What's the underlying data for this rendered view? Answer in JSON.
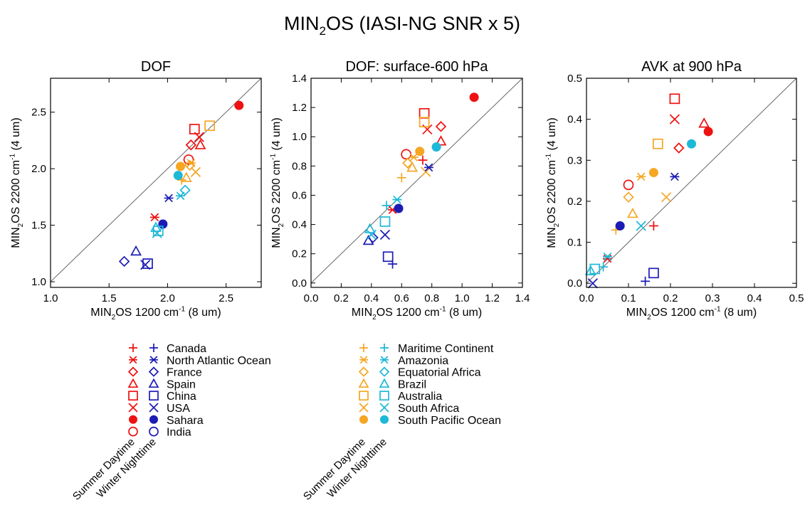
{
  "figure": {
    "title_prefix": "MIN",
    "title_sub": "2",
    "title_suffix": "OS (IASI-NG SNR x 5)"
  },
  "colors": {
    "summer_north": "#ee1111",
    "winter_north": "#1c1cb5",
    "summer_south": "#f5a623",
    "winter_south": "#1eb8d8",
    "diagonal": "#666666"
  },
  "legend": {
    "group_labels": [
      "Summer Daytime",
      "Winter Nighttime"
    ],
    "north": [
      {
        "name": "Canada",
        "symbol": "plus"
      },
      {
        "name": "North Atlantic Ocean",
        "symbol": "asterisk"
      },
      {
        "name": "France",
        "symbol": "diamond"
      },
      {
        "name": "Spain",
        "symbol": "triangle"
      },
      {
        "name": "China",
        "symbol": "square"
      },
      {
        "name": "USA",
        "symbol": "x"
      },
      {
        "name": "Sahara",
        "symbol": "filled-circle"
      },
      {
        "name": "India",
        "symbol": "circle"
      }
    ],
    "south": [
      {
        "name": "Maritime Continent",
        "symbol": "plus"
      },
      {
        "name": "Amazonia",
        "symbol": "asterisk"
      },
      {
        "name": "Equatorial Africa",
        "symbol": "diamond"
      },
      {
        "name": "Brazil",
        "symbol": "triangle"
      },
      {
        "name": "Australia",
        "symbol": "square"
      },
      {
        "name": "South Africa",
        "symbol": "x"
      },
      {
        "name": "South Pacific Ocean",
        "symbol": "filled-circle"
      }
    ]
  },
  "chart_data": [
    {
      "type": "scatter",
      "title": "DOF",
      "xlabel": {
        "pre": "MIN",
        "sub": "2",
        "mid": "OS 1200 cm",
        "sup": "-1",
        "post": " (8 um)"
      },
      "ylabel": {
        "pre": "MIN",
        "sub": "2",
        "mid": "OS 2200 cm",
        "sup": "-1",
        "post": " (4 um)"
      },
      "xlim": [
        1.0,
        2.8
      ],
      "ylim": [
        0.95,
        2.8
      ],
      "xticks": [
        1.0,
        1.5,
        2.0,
        2.5
      ],
      "yticks": [
        1.0,
        1.5,
        2.0,
        2.5
      ],
      "tick_decimals": 1,
      "diagonal": true,
      "points": [
        {
          "x": 2.61,
          "y": 2.56,
          "symbol": "filled-circle",
          "color": "summer_north"
        },
        {
          "x": 2.23,
          "y": 2.35,
          "symbol": "square",
          "color": "summer_north"
        },
        {
          "x": 2.27,
          "y": 2.28,
          "symbol": "x",
          "color": "summer_north"
        },
        {
          "x": 2.2,
          "y": 2.21,
          "symbol": "diamond",
          "color": "summer_north"
        },
        {
          "x": 2.28,
          "y": 2.21,
          "symbol": "triangle",
          "color": "summer_north"
        },
        {
          "x": 2.18,
          "y": 2.08,
          "symbol": "circle",
          "color": "summer_north"
        },
        {
          "x": 1.89,
          "y": 1.57,
          "symbol": "asterisk",
          "color": "summer_north"
        },
        {
          "x": 2.36,
          "y": 2.38,
          "symbol": "square",
          "color": "summer_south"
        },
        {
          "x": 2.2,
          "y": 2.05,
          "symbol": "asterisk",
          "color": "summer_south"
        },
        {
          "x": 2.19,
          "y": 2.03,
          "symbol": "diamond",
          "color": "summer_south"
        },
        {
          "x": 2.24,
          "y": 1.97,
          "symbol": "x",
          "color": "summer_south"
        },
        {
          "x": 2.11,
          "y": 2.02,
          "symbol": "filled-circle",
          "color": "summer_south"
        },
        {
          "x": 2.16,
          "y": 1.92,
          "symbol": "triangle",
          "color": "summer_south"
        },
        {
          "x": 2.12,
          "y": 1.9,
          "symbol": "plus",
          "color": "summer_south"
        },
        {
          "x": 2.01,
          "y": 1.74,
          "symbol": "asterisk",
          "color": "winter_north"
        },
        {
          "x": 1.96,
          "y": 1.51,
          "symbol": "filled-circle",
          "color": "winter_north"
        },
        {
          "x": 1.73,
          "y": 1.27,
          "symbol": "triangle",
          "color": "winter_north"
        },
        {
          "x": 1.63,
          "y": 1.18,
          "symbol": "diamond",
          "color": "winter_north"
        },
        {
          "x": 1.83,
          "y": 1.16,
          "symbol": "square",
          "color": "winter_north"
        },
        {
          "x": 1.81,
          "y": 1.15,
          "symbol": "x",
          "color": "winter_north"
        },
        {
          "x": 2.09,
          "y": 1.94,
          "symbol": "filled-circle",
          "color": "winter_south"
        },
        {
          "x": 2.11,
          "y": 1.76,
          "symbol": "asterisk",
          "color": "winter_south"
        },
        {
          "x": 2.15,
          "y": 1.81,
          "symbol": "diamond",
          "color": "winter_south"
        },
        {
          "x": 1.9,
          "y": 1.48,
          "symbol": "triangle",
          "color": "winter_south"
        },
        {
          "x": 1.92,
          "y": 1.45,
          "symbol": "square",
          "color": "winter_south"
        },
        {
          "x": 1.91,
          "y": 1.43,
          "symbol": "x",
          "color": "winter_south"
        }
      ]
    },
    {
      "type": "scatter",
      "title": "DOF: surface-600 hPa",
      "xlabel": {
        "pre": "MIN",
        "sub": "2",
        "mid": "OS 1200 cm",
        "sup": "-1",
        "post": " (8 um)"
      },
      "ylabel": {
        "pre": "MIN",
        "sub": "2",
        "mid": "OS 2200 cm",
        "sup": "-1",
        "post": " (4 um)"
      },
      "xlim": [
        0.0,
        1.4
      ],
      "ylim": [
        -0.03,
        1.4
      ],
      "xticks": [
        0.0,
        0.2,
        0.4,
        0.6,
        0.8,
        1.0,
        1.2,
        1.4
      ],
      "yticks": [
        0.0,
        0.2,
        0.4,
        0.6,
        0.8,
        1.0,
        1.2,
        1.4
      ],
      "tick_decimals": 1,
      "diagonal": true,
      "points": [
        {
          "x": 1.08,
          "y": 1.27,
          "symbol": "filled-circle",
          "color": "summer_north"
        },
        {
          "x": 0.75,
          "y": 1.16,
          "symbol": "square",
          "color": "summer_north"
        },
        {
          "x": 0.77,
          "y": 1.05,
          "symbol": "x",
          "color": "summer_north"
        },
        {
          "x": 0.86,
          "y": 1.07,
          "symbol": "diamond",
          "color": "summer_north"
        },
        {
          "x": 0.86,
          "y": 0.97,
          "symbol": "triangle",
          "color": "summer_north"
        },
        {
          "x": 0.63,
          "y": 0.88,
          "symbol": "circle",
          "color": "summer_north"
        },
        {
          "x": 0.74,
          "y": 0.84,
          "symbol": "plus",
          "color": "summer_north"
        },
        {
          "x": 0.54,
          "y": 0.5,
          "symbol": "asterisk",
          "color": "summer_north"
        },
        {
          "x": 0.75,
          "y": 1.1,
          "symbol": "square",
          "color": "summer_south"
        },
        {
          "x": 0.72,
          "y": 0.9,
          "symbol": "filled-circle",
          "color": "summer_south"
        },
        {
          "x": 0.68,
          "y": 0.86,
          "symbol": "asterisk",
          "color": "summer_south"
        },
        {
          "x": 0.64,
          "y": 0.82,
          "symbol": "diamond",
          "color": "summer_south"
        },
        {
          "x": 0.67,
          "y": 0.79,
          "symbol": "triangle",
          "color": "summer_south"
        },
        {
          "x": 0.76,
          "y": 0.76,
          "symbol": "x",
          "color": "summer_south"
        },
        {
          "x": 0.6,
          "y": 0.72,
          "symbol": "plus",
          "color": "summer_south"
        },
        {
          "x": 0.78,
          "y": 0.79,
          "symbol": "asterisk",
          "color": "winter_north"
        },
        {
          "x": 0.58,
          "y": 0.51,
          "symbol": "filled-circle",
          "color": "winter_north"
        },
        {
          "x": 0.49,
          "y": 0.33,
          "symbol": "x",
          "color": "winter_north"
        },
        {
          "x": 0.41,
          "y": 0.31,
          "symbol": "diamond",
          "color": "winter_north"
        },
        {
          "x": 0.38,
          "y": 0.29,
          "symbol": "triangle",
          "color": "winter_north"
        },
        {
          "x": 0.51,
          "y": 0.18,
          "symbol": "square",
          "color": "winter_north"
        },
        {
          "x": 0.54,
          "y": 0.13,
          "symbol": "plus",
          "color": "winter_north"
        },
        {
          "x": 0.83,
          "y": 0.93,
          "symbol": "filled-circle",
          "color": "winter_south"
        },
        {
          "x": 0.57,
          "y": 0.57,
          "symbol": "asterisk",
          "color": "winter_south"
        },
        {
          "x": 0.5,
          "y": 0.53,
          "symbol": "plus",
          "color": "winter_south"
        },
        {
          "x": 0.49,
          "y": 0.42,
          "symbol": "square",
          "color": "winter_south"
        },
        {
          "x": 0.39,
          "y": 0.37,
          "symbol": "triangle",
          "color": "winter_south"
        },
        {
          "x": 0.4,
          "y": 0.33,
          "symbol": "x",
          "color": "winter_south"
        }
      ]
    },
    {
      "type": "scatter",
      "title": "AVK at 900 hPa",
      "xlabel": {
        "pre": "MIN",
        "sub": "2",
        "mid": "OS 1200 cm",
        "sup": "-1",
        "post": " (8 um)"
      },
      "ylabel": {
        "pre": "MIN",
        "sub": "2",
        "mid": "OS 2200 cm",
        "sup": "-1",
        "post": " (4 um)"
      },
      "xlim": [
        0.0,
        0.5
      ],
      "ylim": [
        -0.01,
        0.5
      ],
      "xticks": [
        0.0,
        0.1,
        0.2,
        0.3,
        0.4,
        0.5
      ],
      "yticks": [
        0.0,
        0.1,
        0.2,
        0.3,
        0.4,
        0.5
      ],
      "tick_decimals": 1,
      "diagonal": true,
      "points": [
        {
          "x": 0.21,
          "y": 0.45,
          "symbol": "square",
          "color": "summer_north"
        },
        {
          "x": 0.21,
          "y": 0.4,
          "symbol": "x",
          "color": "summer_north"
        },
        {
          "x": 0.28,
          "y": 0.39,
          "symbol": "triangle",
          "color": "summer_north"
        },
        {
          "x": 0.29,
          "y": 0.37,
          "symbol": "filled-circle",
          "color": "summer_north"
        },
        {
          "x": 0.22,
          "y": 0.33,
          "symbol": "diamond",
          "color": "summer_north"
        },
        {
          "x": 0.1,
          "y": 0.24,
          "symbol": "circle",
          "color": "summer_north"
        },
        {
          "x": 0.16,
          "y": 0.14,
          "symbol": "plus",
          "color": "summer_north"
        },
        {
          "x": 0.05,
          "y": 0.06,
          "symbol": "asterisk",
          "color": "summer_north"
        },
        {
          "x": 0.17,
          "y": 0.34,
          "symbol": "square",
          "color": "summer_south"
        },
        {
          "x": 0.16,
          "y": 0.27,
          "symbol": "filled-circle",
          "color": "summer_south"
        },
        {
          "x": 0.13,
          "y": 0.26,
          "symbol": "asterisk",
          "color": "summer_south"
        },
        {
          "x": 0.1,
          "y": 0.21,
          "symbol": "diamond",
          "color": "summer_south"
        },
        {
          "x": 0.19,
          "y": 0.21,
          "symbol": "x",
          "color": "summer_south"
        },
        {
          "x": 0.11,
          "y": 0.17,
          "symbol": "triangle",
          "color": "summer_south"
        },
        {
          "x": 0.07,
          "y": 0.13,
          "symbol": "plus",
          "color": "summer_south"
        },
        {
          "x": 0.21,
          "y": 0.26,
          "symbol": "asterisk",
          "color": "winter_north"
        },
        {
          "x": 0.08,
          "y": 0.14,
          "symbol": "filled-circle",
          "color": "winter_north"
        },
        {
          "x": 0.16,
          "y": 0.025,
          "symbol": "square",
          "color": "winter_north"
        },
        {
          "x": 0.14,
          "y": 0.005,
          "symbol": "plus",
          "color": "winter_north"
        },
        {
          "x": 0.015,
          "y": 0.0,
          "symbol": "x",
          "color": "winter_north"
        },
        {
          "x": 0.25,
          "y": 0.34,
          "symbol": "filled-circle",
          "color": "winter_south"
        },
        {
          "x": 0.13,
          "y": 0.14,
          "symbol": "x",
          "color": "winter_south"
        },
        {
          "x": 0.05,
          "y": 0.065,
          "symbol": "asterisk",
          "color": "winter_south"
        },
        {
          "x": 0.04,
          "y": 0.04,
          "symbol": "plus",
          "color": "winter_south"
        },
        {
          "x": 0.02,
          "y": 0.035,
          "symbol": "square",
          "color": "winter_south"
        },
        {
          "x": 0.01,
          "y": 0.03,
          "symbol": "triangle",
          "color": "winter_south"
        }
      ]
    }
  ]
}
